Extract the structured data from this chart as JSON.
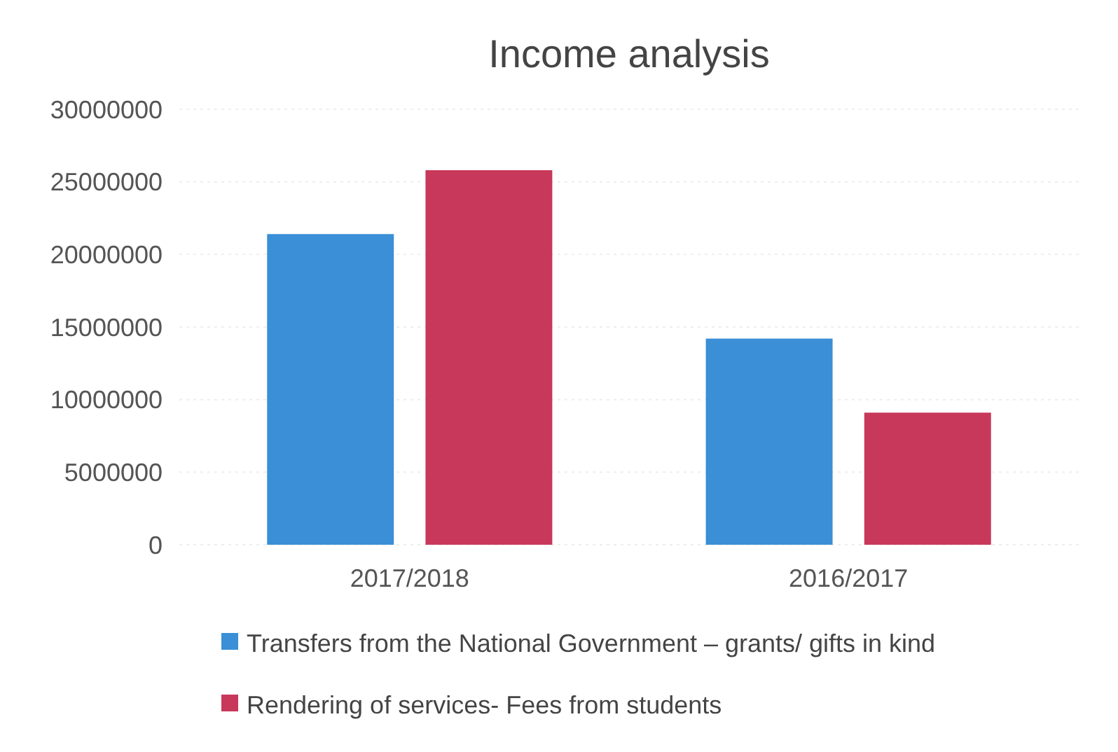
{
  "chart_data": {
    "type": "bar",
    "title": "Income analysis",
    "categories": [
      "2017/2018",
      "2016/2017"
    ],
    "series": [
      {
        "name": "Transfers from the National Government – grants/ gifts in kind",
        "color": "#3a8fd6",
        "values": [
          21400000,
          14200000
        ]
      },
      {
        "name": "Rendering of services- Fees from students",
        "color": "#c8385a",
        "values": [
          25800000,
          9100000
        ]
      }
    ],
    "ylim": [
      0,
      30000000
    ],
    "yticks": [
      0,
      5000000,
      10000000,
      15000000,
      20000000,
      25000000,
      30000000
    ],
    "grid": "y",
    "legend": "bottom"
  }
}
